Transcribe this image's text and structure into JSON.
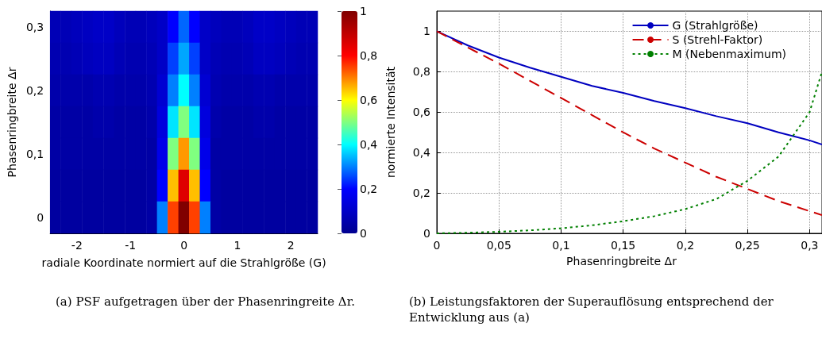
{
  "chart_data": [
    {
      "type": "heatmap",
      "xlabel": "radiale Koordinate normiert auf die Strahlgröße (G)",
      "ylabel": "Phasenringbreite Δr",
      "clabel": "normierte Intensität",
      "categories": [
        null,
        null,
        "-2",
        null,
        null,
        null,
        null,
        "-1",
        null,
        null,
        null,
        null,
        "0",
        null,
        null,
        null,
        null,
        "1",
        null,
        null,
        null,
        null,
        "2",
        null,
        null
      ],
      "y_categories": [
        "0,3",
        null,
        "0,2",
        null,
        "0,1",
        null,
        "0"
      ],
      "cells": [
        [
          0.07,
          0.07,
          0.08,
          0.09,
          0.1,
          0.1,
          0.08,
          0.07,
          0.07,
          0.08,
          0.1,
          0.2,
          0.28,
          0.2,
          0.1,
          0.08,
          0.07,
          0.07,
          0.08,
          0.1,
          0.1,
          0.09,
          0.08,
          0.07,
          0.07
        ],
        [
          0.06,
          0.06,
          0.07,
          0.08,
          0.09,
          0.09,
          0.07,
          0.06,
          0.06,
          0.07,
          0.1,
          0.25,
          0.33,
          0.25,
          0.1,
          0.07,
          0.06,
          0.06,
          0.07,
          0.09,
          0.09,
          0.08,
          0.07,
          0.06,
          0.06
        ],
        [
          0.05,
          0.05,
          0.05,
          0.05,
          0.06,
          0.06,
          0.05,
          0.05,
          0.05,
          0.06,
          0.12,
          0.3,
          0.4,
          0.3,
          0.12,
          0.06,
          0.05,
          0.05,
          0.05,
          0.06,
          0.06,
          0.05,
          0.05,
          0.05,
          0.05
        ],
        [
          0.04,
          0.04,
          0.04,
          0.04,
          0.05,
          0.05,
          0.04,
          0.04,
          0.04,
          0.05,
          0.14,
          0.38,
          0.5,
          0.38,
          0.14,
          0.05,
          0.04,
          0.04,
          0.04,
          0.05,
          0.05,
          0.04,
          0.04,
          0.04,
          0.04
        ],
        [
          0.04,
          0.04,
          0.04,
          0.04,
          0.04,
          0.04,
          0.04,
          0.04,
          0.04,
          0.04,
          0.16,
          0.5,
          0.68,
          0.5,
          0.16,
          0.04,
          0.04,
          0.04,
          0.04,
          0.04,
          0.04,
          0.04,
          0.04,
          0.04,
          0.04
        ],
        [
          0.03,
          0.03,
          0.03,
          0.03,
          0.03,
          0.03,
          0.03,
          0.03,
          0.03,
          0.04,
          0.2,
          0.65,
          0.85,
          0.65,
          0.2,
          0.04,
          0.03,
          0.03,
          0.03,
          0.03,
          0.03,
          0.03,
          0.03,
          0.03,
          0.03
        ],
        [
          0.03,
          0.03,
          0.03,
          0.03,
          0.03,
          0.03,
          0.03,
          0.03,
          0.03,
          0.04,
          0.3,
          0.75,
          1,
          0.75,
          0.3,
          0.04,
          0.03,
          0.03,
          0.03,
          0.03,
          0.03,
          0.03,
          0.03,
          0.03,
          0.03
        ]
      ],
      "clim": [
        0,
        1
      ],
      "cticks": [
        0,
        {
          "value": 0.2,
          "label": "0,2"
        },
        {
          "value": 0.4,
          "label": "0,4"
        },
        {
          "value": 0.6,
          "label": "0,6"
        },
        {
          "value": 0.8,
          "label": "0,8"
        },
        1
      ],
      "annotations": [
        "(a) PSF aufgetragen über der Phasenringreite Δr."
      ]
    },
    {
      "type": "line",
      "xlabel": "Phasenringbreite Δr",
      "xlim": [
        0,
        0.31
      ],
      "xticks": [
        0,
        {
          "value": 0.05,
          "label": "0,05"
        },
        {
          "value": 0.1,
          "label": "0,1"
        },
        {
          "value": 0.15,
          "label": "0,15"
        },
        {
          "value": 0.2,
          "label": "0,2"
        },
        {
          "value": 0.25,
          "label": "0,25"
        },
        {
          "value": 0.3,
          "label": "0,3"
        }
      ],
      "ylim": [
        0,
        1.1
      ],
      "yticks": [
        0,
        {
          "value": 0.2,
          "label": "0,2"
        },
        {
          "value": 0.4,
          "label": "0,4"
        },
        {
          "value": 0.6,
          "label": "0,6"
        },
        {
          "value": 0.8,
          "label": "0,8"
        },
        1
      ],
      "grid": true,
      "legend": "top right",
      "marker": "none",
      "x": [
        0,
        0.025,
        0.05,
        0.075,
        0.1,
        0.125,
        0.15,
        0.175,
        0.2,
        0.225,
        0.25,
        0.275,
        0.3,
        0.31
      ],
      "series": [
        {
          "name": "G (Strahlgröße)",
          "color": "#0000c0",
          "line_style": "solid",
          "values": [
            1,
            0.93,
            0.87,
            0.82,
            0.775,
            0.73,
            0.695,
            0.655,
            0.62,
            0.58,
            0.545,
            0.5,
            0.46,
            0.44
          ]
        },
        {
          "name": "S (Strehl-Faktor)",
          "color": "#cc0000",
          "line_style": "dashed",
          "values": [
            1,
            0.92,
            0.84,
            0.755,
            0.67,
            0.585,
            0.5,
            0.42,
            0.35,
            0.28,
            0.22,
            0.16,
            0.11,
            0.09
          ]
        },
        {
          "name": "M (Nebenmaximum)",
          "color": "#008000",
          "line_style": "dotted",
          "values": [
            0,
            0.003,
            0.008,
            0.015,
            0.025,
            0.04,
            0.06,
            0.085,
            0.12,
            0.17,
            0.26,
            0.38,
            0.6,
            0.8
          ]
        }
      ],
      "annotations": [
        "(b) Leistungsfaktoren der Superauflösung entsprechend der Entwicklung aus (a)"
      ]
    }
  ]
}
